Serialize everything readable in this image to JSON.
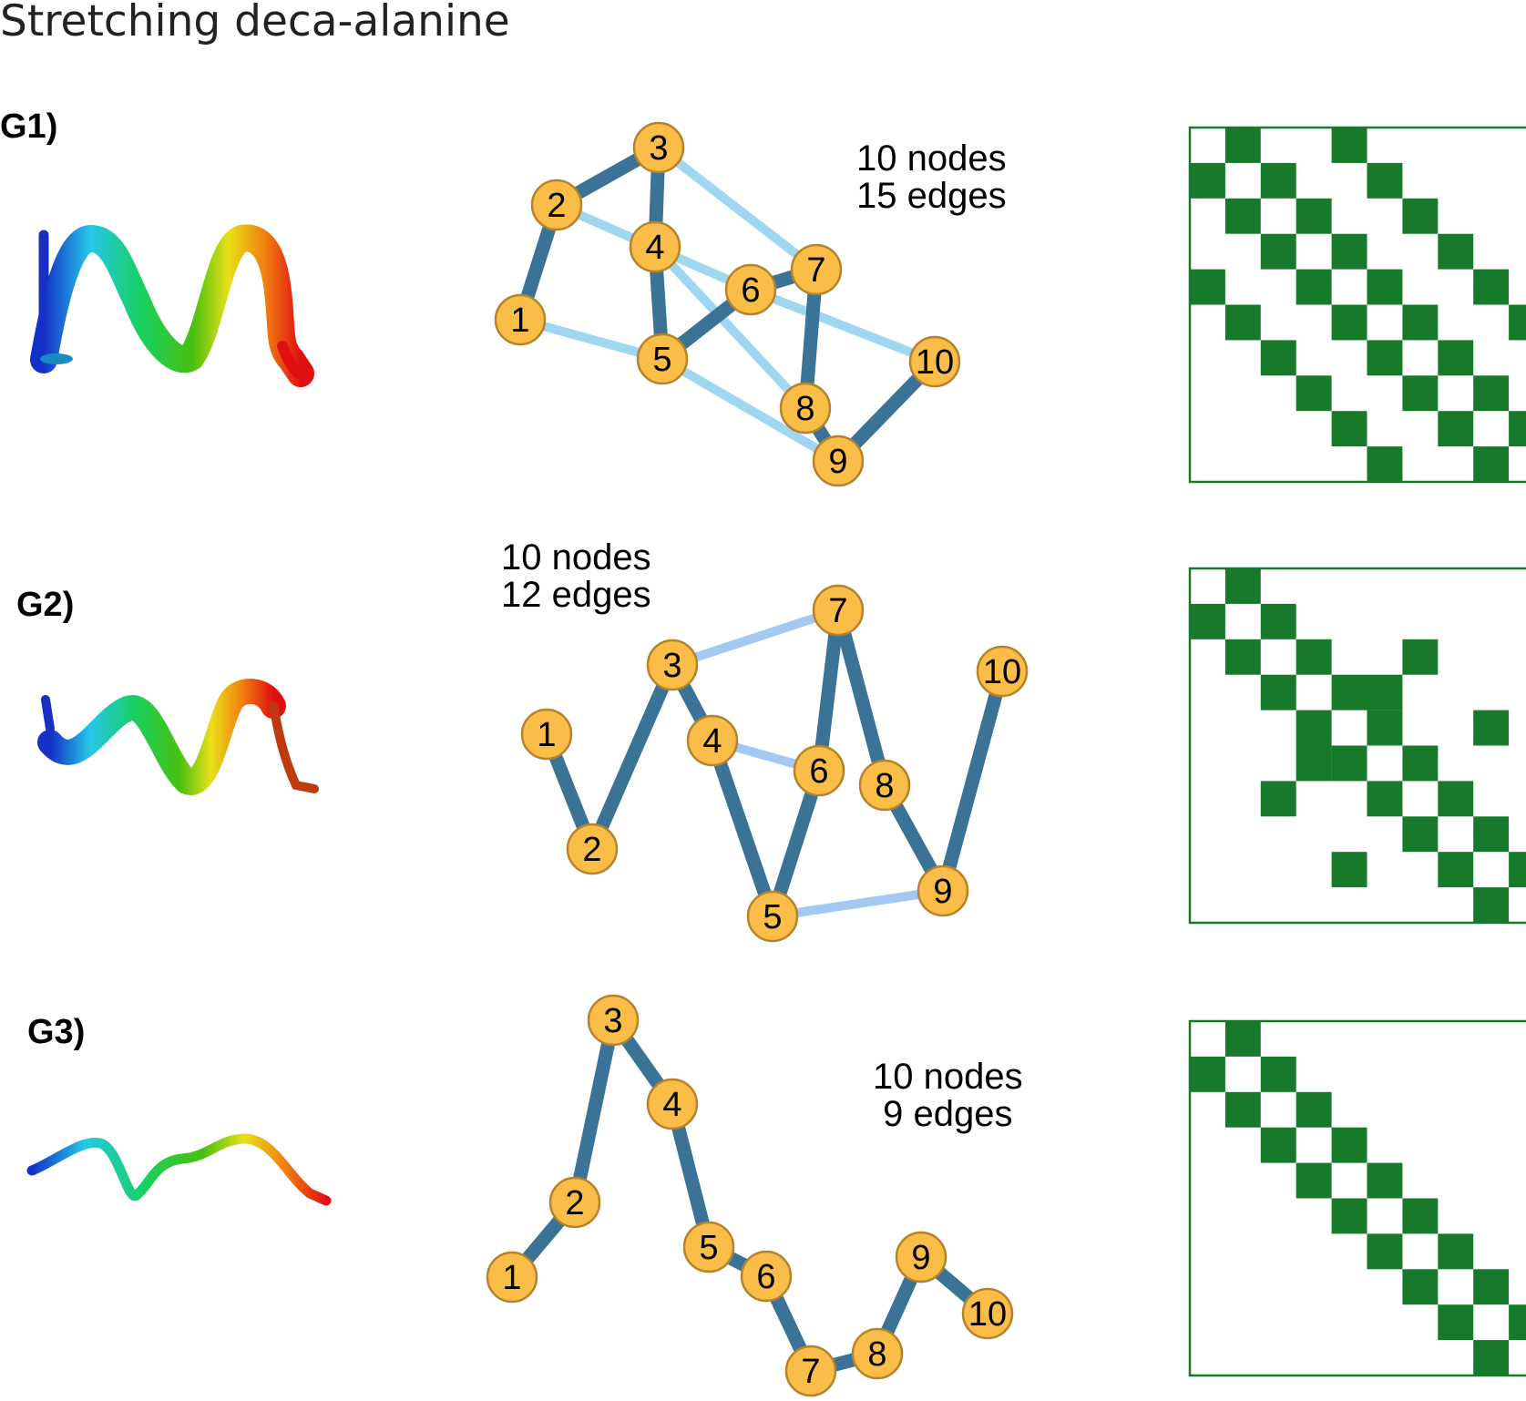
{
  "title": "Stretching deca-alanine",
  "colors": {
    "strong_edge": "#3a7396",
    "weak_edge_g1": "#9fd6f0",
    "weak_edge_g2": "#a3c9f2",
    "node_fill": "#f9bd48",
    "node_stroke": "#b5832c",
    "matrix_cell": "#167a2a",
    "matrix_border": "#167a2a"
  },
  "graphs": [
    {
      "label": "G1)",
      "nodes_text": "10 nodes",
      "edges_text": "15 edges",
      "strong_edges": [
        [
          1,
          2
        ],
        [
          2,
          3
        ],
        [
          3,
          4
        ],
        [
          4,
          5
        ],
        [
          5,
          6
        ],
        [
          6,
          7
        ],
        [
          7,
          8
        ],
        [
          8,
          9
        ],
        [
          9,
          10
        ]
      ],
      "weak_edges": [
        [
          1,
          5
        ],
        [
          2,
          6
        ],
        [
          3,
          7
        ],
        [
          4,
          8
        ],
        [
          5,
          9
        ],
        [
          6,
          10
        ]
      ],
      "matrix_size": 10
    },
    {
      "label": "G2)",
      "nodes_text": "10 nodes",
      "edges_text": "12 edges",
      "strong_edges": [
        [
          1,
          2
        ],
        [
          2,
          3
        ],
        [
          3,
          4
        ],
        [
          4,
          5
        ],
        [
          5,
          6
        ],
        [
          6,
          7
        ],
        [
          7,
          8
        ],
        [
          8,
          9
        ],
        [
          9,
          10
        ]
      ],
      "weak_edges": [
        [
          3,
          7
        ],
        [
          4,
          6
        ],
        [
          5,
          9
        ]
      ],
      "matrix_size": 10
    },
    {
      "label": "G3)",
      "nodes_text": "10 nodes",
      "edges_text": "9 edges",
      "strong_edges": [
        [
          1,
          2
        ],
        [
          2,
          3
        ],
        [
          3,
          4
        ],
        [
          4,
          5
        ],
        [
          5,
          6
        ],
        [
          6,
          7
        ],
        [
          7,
          8
        ],
        [
          8,
          9
        ],
        [
          9,
          10
        ]
      ],
      "weak_edges": [],
      "matrix_size": 10
    }
  ]
}
